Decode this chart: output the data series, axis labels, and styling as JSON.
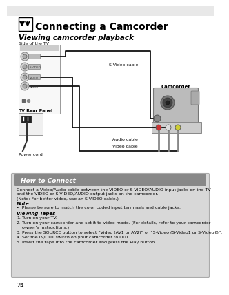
{
  "page_bg": "#ffffff",
  "header_bg": "#e8e8e8",
  "title": "Connecting a Camcorder",
  "subtitle": "Viewing camcorder playback",
  "side_label": "Side of the TV",
  "rear_label": "TV Rear Panel",
  "power_label": "Power cord",
  "svideo_label": "S-Video cable",
  "audio_label": "Audio cable",
  "video_label": "Video cable",
  "camcorder_label": "Camcorder",
  "box_title": "How to Connect",
  "box_title_bg": "#888888",
  "box_bg": "#d8d8d8",
  "body_text_lines": [
    "Connect a Video/Audio cable between the VIDEO or S-VIDEO/AUDIO input jacks on the TV",
    "and the VIDEO or S-VIDEO/AUDIO output jacks on the camcorder.",
    "(Note: For better video, use an S-VIDEO cable.)"
  ],
  "note_bold": "Note",
  "note_bullet": "•  Please be sure to match the color coded input terminals and cable jacks.",
  "viewing_bold": "Viewing Tapes",
  "steps": [
    "Turn on your TV.",
    "Turn on your camcorder and set it to video mode. (For details, refer to your camcorder",
    "owner’s instructions.)",
    "Press the SOURCE button to select “Video (AV1 or AV2)” or “S-Video (S-Video1 or S-Video2)”.",
    "Set the IN/OUT switch on your camcorder to OUT.",
    "Insert the tape into the camcorder and press the Play button."
  ],
  "step_numbers": [
    "1.",
    "2.",
    "",
    "3.",
    "4.",
    "5."
  ],
  "page_number": "24"
}
